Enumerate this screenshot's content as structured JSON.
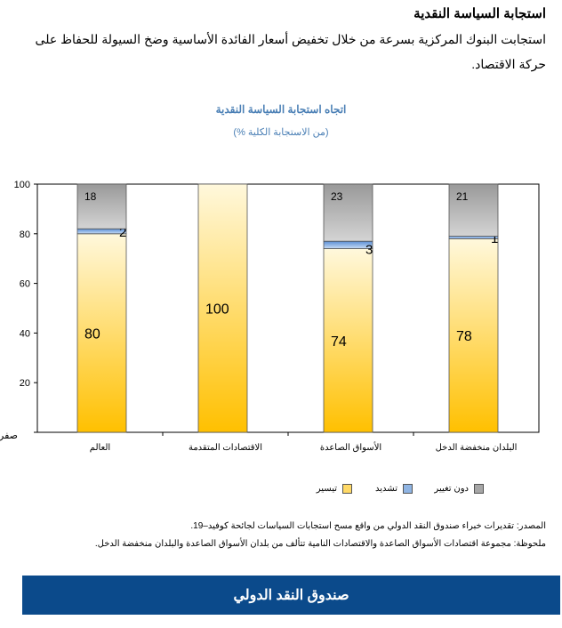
{
  "header": {
    "title": "استجابة السياسة النقدية",
    "intro": "استجابت البنوك المركزية بسرعة من خلال تخفيض أسعار الفائدة الأساسية وضخ السيولة للحفاظ على حركة الاقتصاد."
  },
  "chart_data": {
    "type": "bar",
    "stacked": true,
    "title": "اتجاه استجابة السياسة النقدية",
    "subtitle": "(% من الاستجابة الكلية)",
    "categories": [
      "العالم",
      "الاقتصادات المتقدمة",
      "الأسواق الصاعدة",
      "البلدان منخفضة الدخل"
    ],
    "series": [
      {
        "name": "تيسير",
        "values": [
          80,
          100,
          74,
          78
        ],
        "color": "#ffc000"
      },
      {
        "name": "تشديد",
        "values": [
          2,
          0,
          3,
          1
        ],
        "color": "#8fb4e3"
      },
      {
        "name": "دون تغيير",
        "values": [
          18,
          0,
          23,
          21
        ],
        "color": "#a6a6a6"
      }
    ],
    "ylim": [
      0,
      100
    ],
    "yticks": [
      "صفر",
      "20",
      "40",
      "60",
      "80",
      "100"
    ],
    "grid": false,
    "legend": "bottom"
  },
  "source": "المصدر: تقديرات خبراء صندوق النقد الدولي من واقع مسح استجابات السياسات لجائحة كوفيد–19.",
  "note": "ملحوظة: مجموعة اقتصادات الأسواق الصاعدة والاقتصادات النامية تتألف من بلدان الأسواق الصاعدة والبلدان منخفضة الدخل.",
  "footer": {
    "brand": "صندوق النقد الدولي"
  }
}
